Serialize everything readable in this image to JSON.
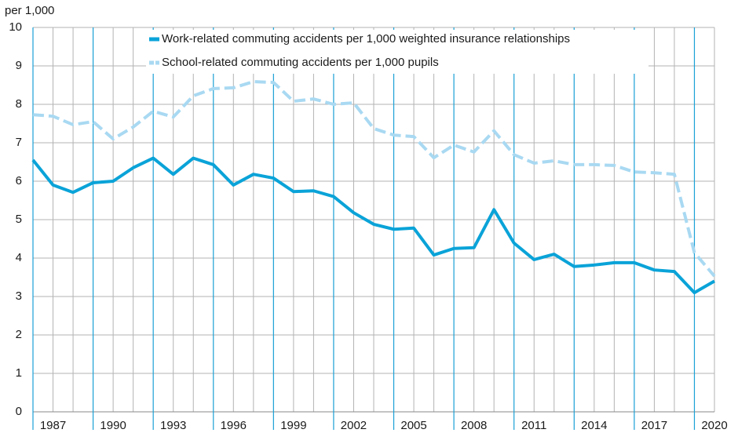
{
  "chart_data": {
    "type": "line",
    "y_label": "per 1,000",
    "x": [
      1986,
      1987,
      1988,
      1989,
      1990,
      1991,
      1992,
      1993,
      1994,
      1995,
      1996,
      1997,
      1998,
      1999,
      2000,
      2001,
      2002,
      2003,
      2004,
      2005,
      2006,
      2007,
      2008,
      2009,
      2010,
      2011,
      2012,
      2013,
      2014,
      2015,
      2016,
      2017,
      2018,
      2019,
      2020
    ],
    "series": [
      {
        "name": "Work-related commuting accidents per 1,000 weighted insurance relationships",
        "color": "#0aa3d8",
        "dash": false,
        "values": [
          6.55,
          5.9,
          5.71,
          5.96,
          6.0,
          6.35,
          6.6,
          6.18,
          6.6,
          6.43,
          5.9,
          6.18,
          6.08,
          5.73,
          5.75,
          5.6,
          5.18,
          4.88,
          4.75,
          4.78,
          4.08,
          4.25,
          4.27,
          5.26,
          4.39,
          3.96,
          4.1,
          3.78,
          3.82,
          3.88,
          3.88,
          3.69,
          3.65,
          3.1,
          3.4
        ]
      },
      {
        "name": "School-related commuting accidents per 1,000 pupils",
        "color": "#a9d9f2",
        "dash": true,
        "values": [
          7.73,
          7.69,
          7.47,
          7.55,
          7.1,
          7.41,
          7.82,
          7.67,
          8.22,
          8.41,
          8.43,
          8.59,
          8.57,
          8.08,
          8.14,
          8.0,
          8.04,
          7.37,
          7.2,
          7.16,
          6.61,
          6.94,
          6.76,
          7.31,
          6.69,
          6.47,
          6.53,
          6.43,
          6.43,
          6.41,
          6.24,
          6.22,
          6.18,
          4.14,
          3.53
        ]
      }
    ],
    "xlim": [
      1986,
      2020
    ],
    "xticks": [
      1987,
      1990,
      1993,
      1996,
      1999,
      2002,
      2005,
      2008,
      2011,
      2014,
      2017,
      2020
    ],
    "ylim": [
      0,
      10
    ],
    "yticks": [
      0,
      1,
      2,
      3,
      4,
      5,
      6,
      7,
      8,
      9,
      10
    ],
    "grid": true,
    "legend": "top"
  }
}
